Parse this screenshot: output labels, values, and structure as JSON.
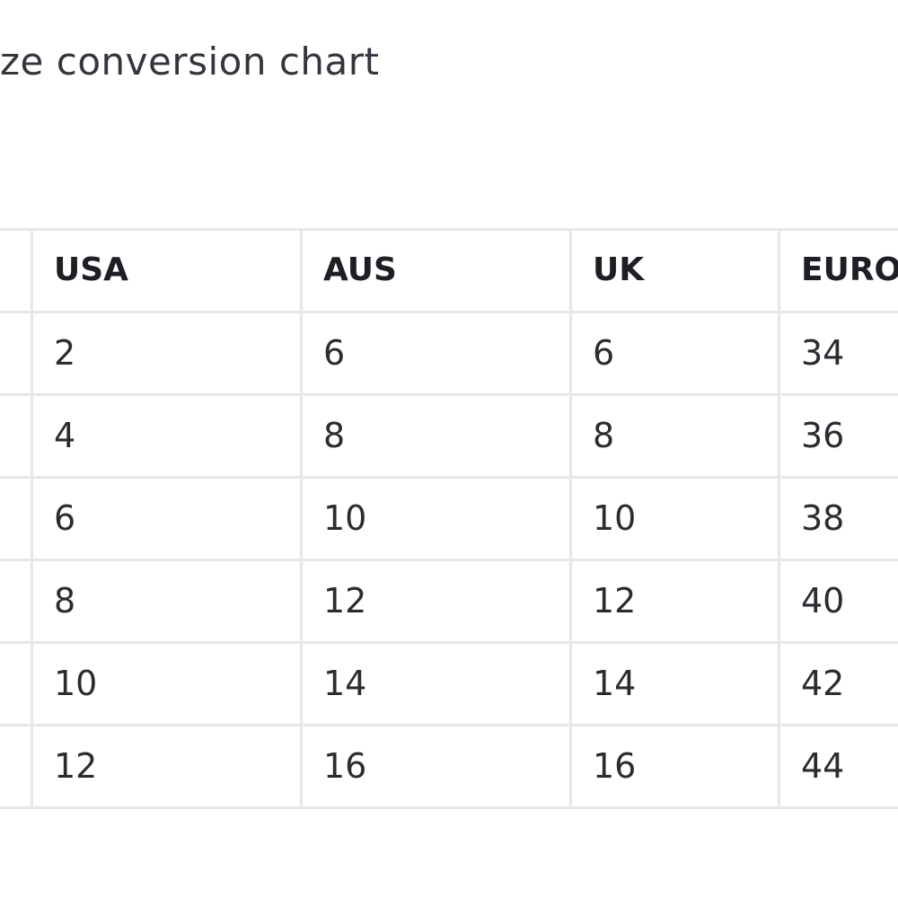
{
  "title": "ze conversion chart",
  "table": {
    "headers": [
      "USA",
      "AUS",
      "UK",
      "EURO"
    ],
    "rows": [
      [
        2,
        6,
        6,
        34
      ],
      [
        4,
        8,
        8,
        36
      ],
      [
        6,
        10,
        10,
        38
      ],
      [
        8,
        12,
        12,
        40
      ],
      [
        10,
        14,
        14,
        42
      ],
      [
        12,
        16,
        16,
        44
      ]
    ]
  }
}
